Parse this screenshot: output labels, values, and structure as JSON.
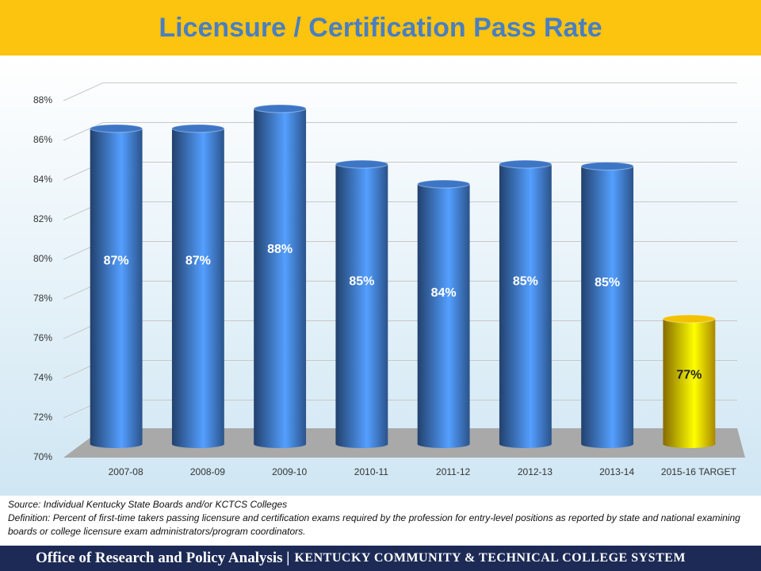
{
  "chart_data": {
    "type": "bar",
    "title": "Licensure / Certification Pass Rate",
    "categories": [
      "2007-08",
      "2008-09",
      "2009-10",
      "2010-11",
      "2011-12",
      "2012-13",
      "2013-14",
      "2015-16 TARGET"
    ],
    "values": [
      86.6,
      86.6,
      87.6,
      84.8,
      83.8,
      84.8,
      84.7,
      77.0
    ],
    "value_labels": [
      "87%",
      "87%",
      "88%",
      "85%",
      "84%",
      "85%",
      "85%",
      "77%"
    ],
    "colors": [
      "#3e76c6",
      "#3e76c6",
      "#3e76c6",
      "#3e76c6",
      "#3e76c6",
      "#3e76c6",
      "#3e76c6",
      "#f2c200"
    ],
    "ylim": [
      70,
      88
    ],
    "yticks": [
      {
        "value": 70,
        "label": "70%"
      },
      {
        "value": 72,
        "label": "72%"
      },
      {
        "value": 74,
        "label": "74%"
      },
      {
        "value": 76,
        "label": "76%"
      },
      {
        "value": 78,
        "label": "78%"
      },
      {
        "value": 80,
        "label": "80%"
      },
      {
        "value": 82,
        "label": "82%"
      },
      {
        "value": 84,
        "label": "84%"
      },
      {
        "value": 86,
        "label": "86%"
      },
      {
        "value": 88,
        "label": "88%"
      }
    ],
    "grid": true
  },
  "notes": {
    "source": "Source: Individual Kentucky State Boards and/or KCTCS Colleges",
    "definition": "Definition:  Percent of first-time takers passing licensure and certification exams required by the profession for entry-level positions as reported by state and national examining boards or college licensure exam administrators/program coordinators."
  },
  "footer": {
    "office": "Office of Research and Policy Analysis |",
    "system": "KENTUCKY COMMUNITY & TECHNICAL COLLEGE SYSTEM"
  }
}
